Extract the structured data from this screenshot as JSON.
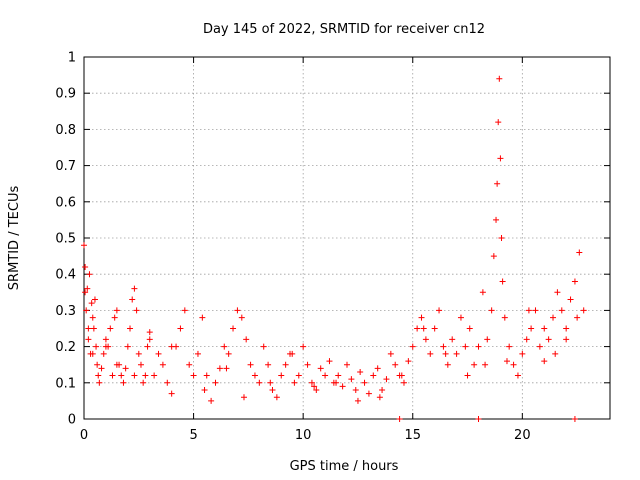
{
  "chart_data": {
    "type": "scatter",
    "title": "Day 145 of 2022, SRMTID for receiver cn12",
    "xlabel": "GPS time / hours",
    "ylabel": "SRMTID / TECUs",
    "xlim": [
      0,
      24
    ],
    "ylim": [
      0,
      1
    ],
    "x_ticks": [
      0,
      5,
      10,
      15,
      20
    ],
    "x_tick_labels": [
      "0",
      "5",
      "10",
      "15",
      "20"
    ],
    "y_ticks": [
      0,
      0.1,
      0.2,
      0.3,
      0.4,
      0.5,
      0.6,
      0.7,
      0.8,
      0.9,
      1
    ],
    "y_tick_labels": [
      "0",
      "0.1",
      "0.2",
      "0.3",
      "0.4",
      "0.5",
      "0.6",
      "0.7",
      "0.8",
      "0.9",
      "1"
    ],
    "grid": true,
    "marker": "+",
    "series": [
      {
        "name": "SRMTID",
        "color": "#ff0000",
        "x": [
          0.0,
          0.05,
          0.1,
          0.15,
          0.2,
          0.25,
          0.3,
          0.35,
          0.4,
          0.45,
          0.5,
          0.55,
          0.6,
          0.65,
          0.7,
          0.8,
          0.9,
          1.0,
          1.1,
          1.2,
          1.3,
          1.4,
          1.5,
          1.6,
          1.7,
          1.8,
          1.9,
          2.0,
          2.1,
          2.2,
          2.3,
          2.4,
          2.5,
          2.6,
          2.7,
          2.8,
          2.9,
          3.0,
          3.2,
          3.4,
          3.6,
          3.8,
          4.0,
          4.2,
          4.4,
          4.6,
          4.8,
          5.0,
          5.2,
          5.4,
          5.6,
          5.8,
          6.0,
          6.2,
          6.4,
          6.6,
          6.8,
          7.0,
          7.2,
          7.4,
          7.6,
          7.8,
          8.0,
          8.2,
          8.4,
          8.6,
          8.8,
          9.0,
          9.2,
          9.4,
          9.6,
          9.8,
          10.0,
          10.2,
          10.4,
          10.6,
          10.8,
          11.0,
          11.2,
          11.4,
          11.6,
          11.8,
          12.0,
          12.2,
          12.4,
          12.6,
          12.8,
          13.0,
          13.2,
          13.4,
          13.6,
          13.8,
          14.0,
          14.2,
          14.4,
          14.6,
          14.8,
          15.0,
          15.2,
          15.4,
          15.6,
          15.8,
          16.0,
          16.2,
          16.4,
          16.6,
          16.8,
          17.0,
          17.2,
          17.4,
          17.6,
          17.8,
          18.0,
          18.2,
          18.4,
          18.6,
          18.7,
          18.8,
          18.85,
          18.9,
          18.95,
          19.0,
          19.05,
          19.1,
          19.2,
          19.4,
          19.6,
          19.8,
          20.0,
          20.2,
          20.4,
          20.6,
          20.8,
          21.0,
          21.2,
          21.4,
          21.6,
          21.8,
          22.0,
          22.2,
          22.4,
          22.6,
          22.8,
          0.05,
          0.2,
          0.4,
          1.0,
          1.5,
          2.3,
          3.0,
          4.0,
          5.5,
          6.5,
          7.3,
          8.5,
          9.5,
          10.5,
          11.5,
          12.5,
          13.5,
          14.5,
          15.5,
          16.5,
          17.5,
          18.3,
          19.3,
          20.3,
          21.0,
          21.5,
          22.0,
          22.5,
          14.4,
          18.0,
          22.4
        ],
        "y": [
          0.48,
          0.42,
          0.3,
          0.36,
          0.22,
          0.4,
          0.18,
          0.32,
          0.28,
          0.25,
          0.33,
          0.2,
          0.15,
          0.12,
          0.1,
          0.14,
          0.18,
          0.22,
          0.2,
          0.25,
          0.12,
          0.28,
          0.3,
          0.15,
          0.12,
          0.1,
          0.14,
          0.2,
          0.25,
          0.33,
          0.36,
          0.3,
          0.18,
          0.15,
          0.1,
          0.12,
          0.2,
          0.22,
          0.12,
          0.18,
          0.15,
          0.1,
          0.07,
          0.2,
          0.25,
          0.3,
          0.15,
          0.12,
          0.18,
          0.28,
          0.12,
          0.05,
          0.1,
          0.14,
          0.2,
          0.18,
          0.25,
          0.3,
          0.28,
          0.22,
          0.15,
          0.12,
          0.1,
          0.2,
          0.15,
          0.08,
          0.06,
          0.12,
          0.15,
          0.18,
          0.1,
          0.12,
          0.2,
          0.15,
          0.1,
          0.08,
          0.14,
          0.12,
          0.16,
          0.1,
          0.12,
          0.09,
          0.15,
          0.11,
          0.08,
          0.13,
          0.1,
          0.07,
          0.12,
          0.14,
          0.08,
          0.11,
          0.18,
          0.15,
          0.12,
          0.1,
          0.16,
          0.2,
          0.25,
          0.28,
          0.22,
          0.18,
          0.25,
          0.3,
          0.2,
          0.15,
          0.22,
          0.18,
          0.28,
          0.2,
          0.25,
          0.15,
          0.2,
          0.35,
          0.22,
          0.3,
          0.45,
          0.55,
          0.65,
          0.82,
          0.94,
          0.72,
          0.5,
          0.38,
          0.28,
          0.2,
          0.15,
          0.12,
          0.18,
          0.22,
          0.25,
          0.3,
          0.2,
          0.16,
          0.22,
          0.28,
          0.35,
          0.3,
          0.25,
          0.33,
          0.38,
          0.46,
          0.3,
          0.35,
          0.25,
          0.18,
          0.2,
          0.15,
          0.12,
          0.24,
          0.2,
          0.08,
          0.14,
          0.06,
          0.1,
          0.18,
          0.09,
          0.1,
          0.05,
          0.06,
          0.12,
          0.25,
          0.18,
          0.12,
          0.15,
          0.16,
          0.3,
          0.25,
          0.18,
          0.22,
          0.28,
          0.0,
          0.0,
          0.0
        ]
      }
    ]
  }
}
